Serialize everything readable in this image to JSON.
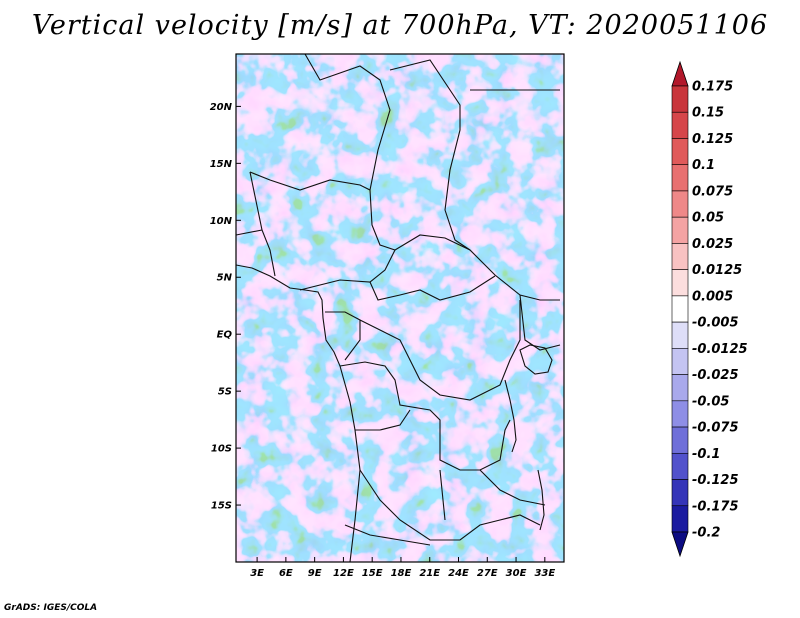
{
  "title": "Vertical velocity [m/s] at 700hPa, VT: 2020051106",
  "credit": "GrADS: IGES/COLA",
  "lat_labels": [
    "20N",
    "15N",
    "10N",
    "5N",
    "EQ",
    "5S",
    "10S",
    "15S"
  ],
  "lat_values": [
    20,
    15,
    10,
    5,
    0,
    -5,
    -10,
    -15
  ],
  "lon_labels": [
    "3E",
    "6E",
    "9E",
    "12E",
    "15E",
    "18E",
    "21E",
    "24E",
    "27E",
    "30E",
    "33E"
  ],
  "lon_values": [
    3,
    6,
    9,
    12,
    15,
    18,
    21,
    24,
    27,
    30,
    33
  ],
  "extent": {
    "lon_min": 0.8,
    "lon_max": 35.0,
    "lat_min": -20.0,
    "lat_max": 24.6
  },
  "colorbar": {
    "labels": [
      "0.175",
      "0.15",
      "0.125",
      "0.1",
      "0.075",
      "0.05",
      "0.025",
      "0.0125",
      "0.005",
      "-0.005",
      "-0.0125",
      "-0.025",
      "-0.05",
      "-0.075",
      "-0.1",
      "-0.125",
      "-0.175",
      "-0.2"
    ],
    "colors": [
      "#b2182b",
      "#c9353b",
      "#d6464a",
      "#e05a5a",
      "#e87070",
      "#ef8888",
      "#f4a3a3",
      "#f8c2c2",
      "#fcdede",
      "#ffffff",
      "#dedef8",
      "#c4c4f2",
      "#a9a9ec",
      "#8e8ee6",
      "#6f6fd9",
      "#5252cc",
      "#3434b8",
      "#1b1ba0",
      "#0c0c82"
    ]
  }
}
